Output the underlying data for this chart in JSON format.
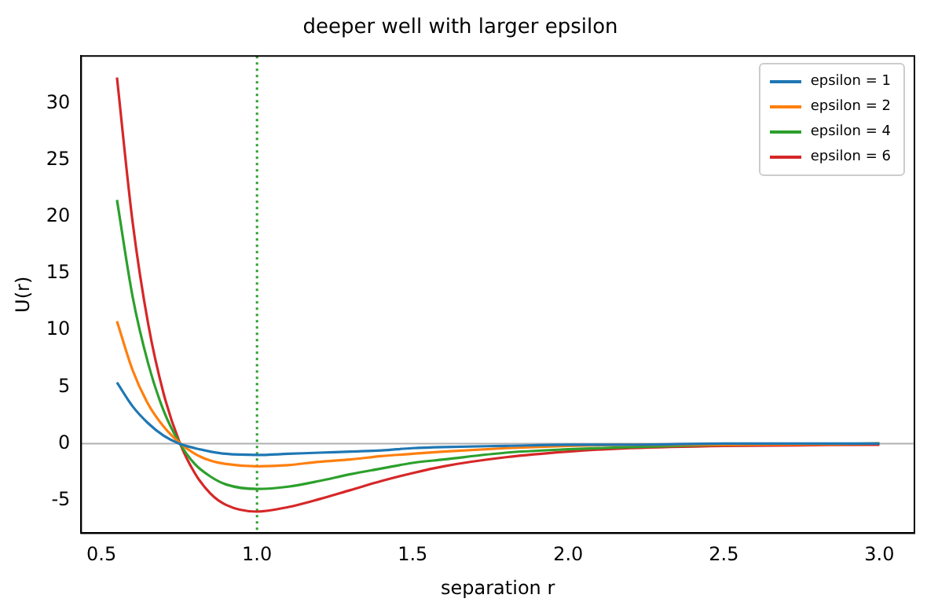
{
  "chart_data": {
    "type": "line",
    "title": "deeper well with larger epsilon",
    "xlabel": "separation r",
    "ylabel": "U(r)",
    "x": [
      0.55,
      0.6,
      0.65,
      0.7,
      0.75,
      0.8,
      0.85,
      0.9,
      1.0,
      1.1,
      1.2,
      1.3,
      1.4,
      1.5,
      1.6,
      1.8,
      2.0,
      2.2,
      2.5,
      3.0
    ],
    "series": [
      {
        "name": "epsilon = 1",
        "color": "#1f77b4",
        "values": [
          5.4,
          3.3,
          1.8,
          0.7,
          0.0,
          -0.4,
          -0.7,
          -0.9,
          -1.0,
          -0.9,
          -0.8,
          -0.7,
          -0.6,
          -0.4,
          -0.3,
          -0.2,
          -0.1,
          -0.1,
          0.0,
          0.0
        ]
      },
      {
        "name": "epsilon = 2",
        "color": "#ff7f0e",
        "values": [
          10.8,
          6.5,
          3.5,
          1.5,
          0.1,
          -0.9,
          -1.5,
          -1.8,
          -2.0,
          -1.9,
          -1.6,
          -1.4,
          -1.1,
          -0.9,
          -0.7,
          -0.4,
          -0.2,
          -0.1,
          -0.1,
          0.0
        ]
      },
      {
        "name": "epsilon = 4",
        "color": "#2ca02c",
        "values": [
          21.5,
          13.0,
          7.1,
          2.9,
          0.1,
          -1.8,
          -2.9,
          -3.6,
          -4.0,
          -3.8,
          -3.3,
          -2.7,
          -2.2,
          -1.7,
          -1.4,
          -0.8,
          -0.5,
          -0.3,
          -0.1,
          0.0
        ]
      },
      {
        "name": "epsilon = 6",
        "color": "#d62728",
        "values": [
          32.3,
          19.6,
          10.6,
          4.4,
          0.2,
          -2.6,
          -4.4,
          -5.4,
          -6.0,
          -5.6,
          -4.9,
          -4.1,
          -3.3,
          -2.6,
          -2.0,
          -1.2,
          -0.7,
          -0.4,
          -0.2,
          -0.1
        ]
      }
    ],
    "xlim": [
      0.435,
      3.1125
    ],
    "ylim": [
      -7.9,
      34.2
    ],
    "xticks": [
      {
        "value": 0.5,
        "label": "0.5"
      },
      {
        "value": 1.0,
        "label": "1.0"
      },
      {
        "value": 1.5,
        "label": "1.5"
      },
      {
        "value": 2.0,
        "label": "2.0"
      },
      {
        "value": 2.5,
        "label": "2.5"
      },
      {
        "value": 3.0,
        "label": "3.0"
      }
    ],
    "yticks": [
      -5,
      0,
      5,
      10,
      15,
      20,
      25,
      30
    ],
    "ref_lines": [
      {
        "axis": "y",
        "value": 0,
        "color": "#b0b0b0",
        "line_style": "solid"
      },
      {
        "axis": "x",
        "value": 1.0,
        "color": "#2ca02c",
        "line_style": "dotted"
      }
    ],
    "grid": false,
    "legend": "top right",
    "marker": "none",
    "line_style": "solid"
  }
}
